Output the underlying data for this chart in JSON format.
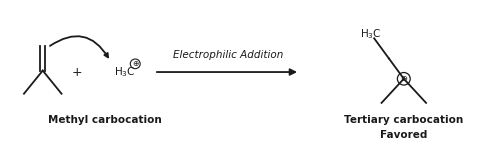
{
  "bg_color": "#ffffff",
  "line_color": "#1a1a1a",
  "text_color": "#1a1a1a",
  "figsize": [
    4.96,
    1.46
  ],
  "dpi": 100,
  "labels": {
    "methyl_carbocation": "Methyl carbocation",
    "tertiary_carbocation": "Tertiary carbocation",
    "favored": "Favored",
    "reaction_label": "Electrophilic Addition",
    "plus_sign": "+",
    "plus_circle": "⊕"
  },
  "fontsize_label": 7.5,
  "fontsize_plus_circle": 5.5
}
